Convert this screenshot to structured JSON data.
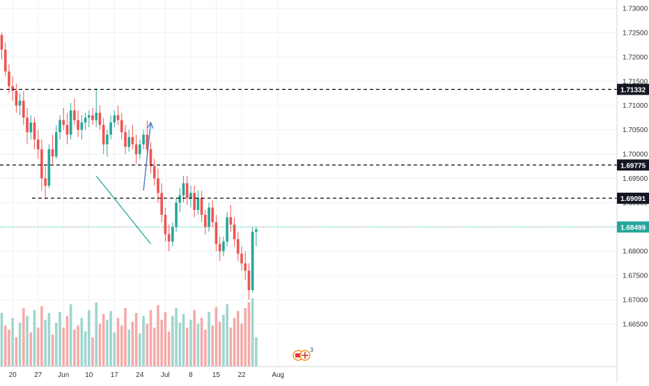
{
  "chart_data": {
    "type": "candlestick",
    "xlabel": "",
    "ylabel": "",
    "ylim": [
      1.6615,
      1.7335
    ],
    "grid": true,
    "colors": {
      "up": "#26a69a",
      "down": "#ef5350",
      "vol_up": "#9fd5cf",
      "vol_down": "#f5aaa8",
      "grid": "#eef0f3",
      "level_line": "#000000",
      "current_line": "#26a69a",
      "trendline": "#26a69a",
      "arrow": "#5b7fc4",
      "axis_text": "#333333",
      "label_bg_dark": "#131722",
      "label_bg_current": "#26a69a"
    },
    "y_ticks": [
      "1.73000",
      "1.72500",
      "1.72000",
      "1.71500",
      "1.71000",
      "1.70500",
      "1.70000",
      "1.69500",
      "1.69000",
      "1.68500",
      "1.68000",
      "1.67500",
      "1.67000",
      "1.66500"
    ],
    "x_ticks": [
      {
        "label": "20",
        "date": "2019-05-20"
      },
      {
        "label": "27",
        "date": "2019-05-27"
      },
      {
        "label": "Jun",
        "date": "2019-06-03"
      },
      {
        "label": "10",
        "date": "2019-06-10"
      },
      {
        "label": "17",
        "date": "2019-06-17"
      },
      {
        "label": "24",
        "date": "2019-06-24"
      },
      {
        "label": "Jul",
        "date": "2019-07-01"
      },
      {
        "label": "8",
        "date": "2019-07-08"
      },
      {
        "label": "15",
        "date": "2019-07-15"
      },
      {
        "label": "22",
        "date": "2019-07-22"
      },
      {
        "label": "Aug",
        "date": "2019-08-01"
      }
    ],
    "levels": [
      {
        "value": 1.71332,
        "label": "1.71332"
      },
      {
        "value": 1.69775,
        "label": "1.69775"
      },
      {
        "value": 1.69091,
        "label": "1.69091"
      }
    ],
    "current_price": {
      "value": 1.68499,
      "label": "1.68499"
    },
    "trendline": {
      "from": [
        "2019-06-12",
        1.6955
      ],
      "to": [
        "2019-06-27",
        1.6815
      ]
    },
    "arrow": {
      "from": [
        "2019-06-25",
        1.6925
      ],
      "to": [
        "2019-06-27",
        1.7065
      ]
    },
    "start_date": "2019-05-17",
    "candles": [
      [
        1.7245,
        1.725,
        1.7195,
        1.7215
      ],
      [
        1.7215,
        1.723,
        1.716,
        1.717
      ],
      [
        1.717,
        1.7185,
        1.7125,
        1.714
      ],
      [
        1.714,
        1.716,
        1.711,
        1.713
      ],
      [
        1.713,
        1.7145,
        1.7085,
        1.71
      ],
      [
        1.71,
        1.7125,
        1.708,
        1.711
      ],
      [
        1.711,
        1.713,
        1.706,
        1.7075
      ],
      [
        1.7075,
        1.7095,
        1.702,
        1.7045
      ],
      [
        1.7045,
        1.708,
        1.703,
        1.7065
      ],
      [
        1.7065,
        1.7075,
        1.701,
        1.703
      ],
      [
        1.703,
        1.705,
        1.699,
        1.701
      ],
      [
        1.701,
        1.703,
        1.6925,
        1.695
      ],
      [
        1.695,
        1.6975,
        1.691,
        1.6935
      ],
      [
        1.6935,
        1.702,
        1.693,
        1.701
      ],
      [
        1.701,
        1.704,
        1.698,
        1.6995
      ],
      [
        1.6995,
        1.706,
        1.699,
        1.7045
      ],
      [
        1.7045,
        1.708,
        1.703,
        1.707
      ],
      [
        1.707,
        1.7095,
        1.705,
        1.706
      ],
      [
        1.706,
        1.7085,
        1.702,
        1.704
      ],
      [
        1.704,
        1.7105,
        1.703,
        1.709
      ],
      [
        1.709,
        1.7115,
        1.706,
        1.707
      ],
      [
        1.707,
        1.709,
        1.7035,
        1.705
      ],
      [
        1.705,
        1.708,
        1.703,
        1.7065
      ],
      [
        1.7065,
        1.7085,
        1.705,
        1.7075
      ],
      [
        1.7075,
        1.709,
        1.7055,
        1.708
      ],
      [
        1.708,
        1.7095,
        1.706,
        1.707
      ],
      [
        1.707,
        1.7135,
        1.7055,
        1.7085
      ],
      [
        1.7085,
        1.71,
        1.705,
        1.706
      ],
      [
        1.706,
        1.7075,
        1.7,
        1.702
      ],
      [
        1.702,
        1.705,
        1.6995,
        1.704
      ],
      [
        1.704,
        1.708,
        1.703,
        1.7065
      ],
      [
        1.7065,
        1.709,
        1.7055,
        1.708
      ],
      [
        1.708,
        1.71,
        1.706,
        1.707
      ],
      [
        1.707,
        1.7085,
        1.703,
        1.7045
      ],
      [
        1.7045,
        1.706,
        1.7,
        1.7015
      ],
      [
        1.7015,
        1.705,
        1.7005,
        1.7035
      ],
      [
        1.7035,
        1.706,
        1.701,
        1.702
      ],
      [
        1.702,
        1.704,
        1.698,
        1.7
      ],
      [
        1.7,
        1.703,
        1.699,
        1.702
      ],
      [
        1.702,
        1.705,
        1.701,
        1.704
      ],
      [
        1.704,
        1.707,
        1.7,
        1.701
      ],
      [
        1.701,
        1.7025,
        1.696,
        1.6975
      ],
      [
        1.6975,
        1.699,
        1.6935,
        1.695
      ],
      [
        1.695,
        1.697,
        1.69,
        1.692
      ],
      [
        1.692,
        1.694,
        1.686,
        1.6875
      ],
      [
        1.6875,
        1.689,
        1.682,
        1.6835
      ],
      [
        1.6835,
        1.6855,
        1.68,
        1.682
      ],
      [
        1.682,
        1.686,
        1.681,
        1.685
      ],
      [
        1.685,
        1.691,
        1.684,
        1.69
      ],
      [
        1.69,
        1.693,
        1.688,
        1.6915
      ],
      [
        1.6915,
        1.6955,
        1.69,
        1.694
      ],
      [
        1.694,
        1.6955,
        1.6895,
        1.691
      ],
      [
        1.691,
        1.6935,
        1.689,
        1.692
      ],
      [
        1.692,
        1.6935,
        1.687,
        1.6885
      ],
      [
        1.6885,
        1.6925,
        1.6875,
        1.691
      ],
      [
        1.691,
        1.6925,
        1.686,
        1.6875
      ],
      [
        1.6875,
        1.6885,
        1.6835,
        1.685
      ],
      [
        1.685,
        1.69,
        1.684,
        1.689
      ],
      [
        1.689,
        1.6905,
        1.685,
        1.686
      ],
      [
        1.686,
        1.6875,
        1.68,
        1.6815
      ],
      [
        1.6815,
        1.683,
        1.678,
        1.68
      ],
      [
        1.68,
        1.683,
        1.679,
        1.682
      ],
      [
        1.682,
        1.688,
        1.681,
        1.687
      ],
      [
        1.687,
        1.6895,
        1.684,
        1.6855
      ],
      [
        1.6855,
        1.687,
        1.681,
        1.6825
      ],
      [
        1.6825,
        1.684,
        1.678,
        1.6795
      ],
      [
        1.6795,
        1.681,
        1.676,
        1.6775
      ],
      [
        1.6775,
        1.68,
        1.674,
        1.676
      ],
      [
        1.676,
        1.6775,
        1.67,
        1.672
      ],
      [
        1.672,
        1.685,
        1.6715,
        1.684
      ],
      [
        1.684,
        1.685,
        1.681,
        1.6845
      ]
    ],
    "volumes": [
      [
        0.55,
        1
      ],
      [
        0.42,
        0
      ],
      [
        0.38,
        0
      ],
      [
        0.5,
        1
      ],
      [
        0.3,
        0
      ],
      [
        0.45,
        1
      ],
      [
        0.6,
        0
      ],
      [
        0.52,
        1
      ],
      [
        0.35,
        0
      ],
      [
        0.58,
        1
      ],
      [
        0.4,
        0
      ],
      [
        0.62,
        0
      ],
      [
        0.48,
        1
      ],
      [
        0.55,
        1
      ],
      [
        0.33,
        0
      ],
      [
        0.45,
        1
      ],
      [
        0.56,
        1
      ],
      [
        0.4,
        0
      ],
      [
        0.52,
        0
      ],
      [
        0.64,
        1
      ],
      [
        0.38,
        0
      ],
      [
        0.42,
        0
      ],
      [
        0.5,
        1
      ],
      [
        0.36,
        1
      ],
      [
        0.58,
        1
      ],
      [
        0.3,
        0
      ],
      [
        0.66,
        1
      ],
      [
        0.44,
        0
      ],
      [
        0.54,
        0
      ],
      [
        0.48,
        1
      ],
      [
        0.57,
        1
      ],
      [
        0.35,
        1
      ],
      [
        0.5,
        0
      ],
      [
        0.42,
        0
      ],
      [
        0.6,
        0
      ],
      [
        0.38,
        1
      ],
      [
        0.46,
        0
      ],
      [
        0.55,
        0
      ],
      [
        0.34,
        1
      ],
      [
        0.52,
        1
      ],
      [
        0.44,
        0
      ],
      [
        0.58,
        0
      ],
      [
        0.4,
        0
      ],
      [
        0.63,
        0
      ],
      [
        0.48,
        0
      ],
      [
        0.56,
        0
      ],
      [
        0.36,
        0
      ],
      [
        0.52,
        1
      ],
      [
        0.6,
        1
      ],
      [
        0.45,
        1
      ],
      [
        0.54,
        1
      ],
      [
        0.4,
        0
      ],
      [
        0.48,
        1
      ],
      [
        0.58,
        0
      ],
      [
        0.44,
        1
      ],
      [
        0.5,
        0
      ],
      [
        0.38,
        0
      ],
      [
        0.56,
        1
      ],
      [
        0.42,
        0
      ],
      [
        0.61,
        0
      ],
      [
        0.46,
        0
      ],
      [
        0.53,
        1
      ],
      [
        0.64,
        1
      ],
      [
        0.4,
        0
      ],
      [
        0.5,
        0
      ],
      [
        0.57,
        0
      ],
      [
        0.44,
        0
      ],
      [
        0.6,
        0
      ],
      [
        0.66,
        0
      ],
      [
        0.7,
        1
      ],
      [
        0.3,
        1
      ]
    ],
    "watermark": {
      "number": "3"
    }
  }
}
